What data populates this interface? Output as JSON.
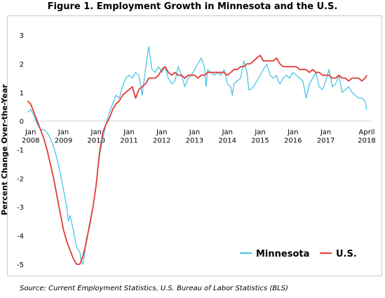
{
  "chart_data": {
    "type": "line",
    "title": "Figure 1. Employment Growth in Minnesota and the U.S.",
    "ylabel": "Percent Change Over-the-Year",
    "xlabel": "",
    "ylim": [
      -5.2,
      3.2
    ],
    "y_ticks": [
      3,
      2,
      1,
      0,
      -1,
      -2,
      -3,
      -4,
      -5
    ],
    "x_ticks": [
      {
        "x": 2008,
        "line1": "Jan",
        "line2": "2008"
      },
      {
        "x": 2009,
        "line1": "Jan",
        "line2": "2009"
      },
      {
        "x": 2010,
        "line1": "Jan",
        "line2": "2010"
      },
      {
        "x": 2011,
        "line1": "Jan",
        "line2": "2011"
      },
      {
        "x": 2012,
        "line1": "Jan",
        "line2": "2012"
      },
      {
        "x": 2013,
        "line1": "Jan",
        "line2": "2013"
      },
      {
        "x": 2014,
        "line1": "Jan",
        "line2": "2014"
      },
      {
        "x": 2015,
        "line1": "Jan",
        "line2": "2015"
      },
      {
        "x": 2016,
        "line1": "Jan",
        "line2": "2016"
      },
      {
        "x": 2017,
        "line1": "Jan",
        "line2": "2017"
      },
      {
        "x": 2018.25,
        "line1": "April",
        "line2": "2018"
      }
    ],
    "xlim": [
      2007.92,
      2018.4
    ],
    "legend_position": "bottom-right",
    "grid": false,
    "series": [
      {
        "name": "Minnesota",
        "color": "#3ec1e6",
        "points": [
          [
            2007.9,
            0.3
          ],
          [
            2008.0,
            0.4
          ],
          [
            2008.1,
            0.2
          ],
          [
            2008.2,
            -0.1
          ],
          [
            2008.3,
            -0.3
          ],
          [
            2008.4,
            -0.3
          ],
          [
            2008.5,
            -0.4
          ],
          [
            2008.6,
            -0.6
          ],
          [
            2008.7,
            -0.9
          ],
          [
            2008.8,
            -1.3
          ],
          [
            2008.9,
            -1.8
          ],
          [
            2009.0,
            -2.4
          ],
          [
            2009.1,
            -3.0
          ],
          [
            2009.15,
            -3.5
          ],
          [
            2009.2,
            -3.3
          ],
          [
            2009.3,
            -3.8
          ],
          [
            2009.4,
            -4.4
          ],
          [
            2009.5,
            -4.6
          ],
          [
            2009.55,
            -4.9
          ],
          [
            2009.6,
            -5.0
          ],
          [
            2009.65,
            -4.6
          ],
          [
            2009.7,
            -4.1
          ],
          [
            2009.8,
            -3.7
          ],
          [
            2009.9,
            -3.0
          ],
          [
            2010.0,
            -2.2
          ],
          [
            2010.1,
            -1.2
          ],
          [
            2010.2,
            -0.6
          ],
          [
            2010.3,
            -0.1
          ],
          [
            2010.4,
            0.3
          ],
          [
            2010.5,
            0.6
          ],
          [
            2010.6,
            0.9
          ],
          [
            2010.7,
            0.8
          ],
          [
            2010.8,
            1.2
          ],
          [
            2010.9,
            1.5
          ],
          [
            2011.0,
            1.6
          ],
          [
            2011.1,
            1.5
          ],
          [
            2011.2,
            1.7
          ],
          [
            2011.3,
            1.6
          ],
          [
            2011.35,
            1.3
          ],
          [
            2011.4,
            0.9
          ],
          [
            2011.5,
            1.8
          ],
          [
            2011.6,
            2.6
          ],
          [
            2011.7,
            1.8
          ],
          [
            2011.8,
            1.7
          ],
          [
            2011.9,
            1.9
          ],
          [
            2012.0,
            1.7
          ],
          [
            2012.1,
            1.9
          ],
          [
            2012.2,
            1.5
          ],
          [
            2012.3,
            1.3
          ],
          [
            2012.4,
            1.4
          ],
          [
            2012.5,
            1.9
          ],
          [
            2012.6,
            1.6
          ],
          [
            2012.7,
            1.2
          ],
          [
            2012.8,
            1.5
          ],
          [
            2012.9,
            1.6
          ],
          [
            2013.0,
            1.8
          ],
          [
            2013.1,
            2.0
          ],
          [
            2013.2,
            2.2
          ],
          [
            2013.3,
            1.9
          ],
          [
            2013.35,
            1.2
          ],
          [
            2013.4,
            1.8
          ],
          [
            2013.5,
            1.7
          ],
          [
            2013.6,
            1.6
          ],
          [
            2013.7,
            1.7
          ],
          [
            2013.8,
            1.6
          ],
          [
            2013.9,
            1.8
          ],
          [
            2014.0,
            1.3
          ],
          [
            2014.1,
            1.2
          ],
          [
            2014.15,
            0.9
          ],
          [
            2014.2,
            1.3
          ],
          [
            2014.3,
            1.4
          ],
          [
            2014.4,
            1.5
          ],
          [
            2014.5,
            2.1
          ],
          [
            2014.6,
            1.7
          ],
          [
            2014.65,
            1.1
          ],
          [
            2014.7,
            1.1
          ],
          [
            2014.8,
            1.2
          ],
          [
            2014.9,
            1.4
          ],
          [
            2015.0,
            1.6
          ],
          [
            2015.1,
            1.8
          ],
          [
            2015.2,
            2.0
          ],
          [
            2015.3,
            1.6
          ],
          [
            2015.4,
            1.5
          ],
          [
            2015.5,
            1.6
          ],
          [
            2015.55,
            1.4
          ],
          [
            2015.6,
            1.3
          ],
          [
            2015.7,
            1.5
          ],
          [
            2015.8,
            1.6
          ],
          [
            2015.9,
            1.5
          ],
          [
            2016.0,
            1.7
          ],
          [
            2016.1,
            1.6
          ],
          [
            2016.2,
            1.5
          ],
          [
            2016.3,
            1.4
          ],
          [
            2016.35,
            1.1
          ],
          [
            2016.4,
            0.8
          ],
          [
            2016.5,
            1.3
          ],
          [
            2016.6,
            1.5
          ],
          [
            2016.7,
            1.7
          ],
          [
            2016.8,
            1.2
          ],
          [
            2016.9,
            1.1
          ],
          [
            2017.0,
            1.4
          ],
          [
            2017.1,
            1.8
          ],
          [
            2017.2,
            1.2
          ],
          [
            2017.3,
            1.3
          ],
          [
            2017.4,
            1.6
          ],
          [
            2017.5,
            1.0
          ],
          [
            2017.6,
            1.1
          ],
          [
            2017.7,
            1.2
          ],
          [
            2017.8,
            1.0
          ],
          [
            2017.9,
            0.9
          ],
          [
            2018.0,
            0.8
          ],
          [
            2018.1,
            0.8
          ],
          [
            2018.2,
            0.7
          ],
          [
            2018.25,
            0.4
          ]
        ]
      },
      {
        "name": "U.S.",
        "color": "#e23b35",
        "points": [
          [
            2007.9,
            0.7
          ],
          [
            2008.0,
            0.6
          ],
          [
            2008.1,
            0.3
          ],
          [
            2008.2,
            0.0
          ],
          [
            2008.3,
            -0.3
          ],
          [
            2008.4,
            -0.6
          ],
          [
            2008.5,
            -1.0
          ],
          [
            2008.6,
            -1.5
          ],
          [
            2008.7,
            -2.0
          ],
          [
            2008.8,
            -2.6
          ],
          [
            2008.9,
            -3.2
          ],
          [
            2009.0,
            -3.8
          ],
          [
            2009.1,
            -4.2
          ],
          [
            2009.2,
            -4.5
          ],
          [
            2009.3,
            -4.8
          ],
          [
            2009.4,
            -5.0
          ],
          [
            2009.5,
            -5.0
          ],
          [
            2009.6,
            -4.7
          ],
          [
            2009.7,
            -4.2
          ],
          [
            2009.8,
            -3.6
          ],
          [
            2009.9,
            -3.0
          ],
          [
            2010.0,
            -2.2
          ],
          [
            2010.1,
            -1.1
          ],
          [
            2010.2,
            -0.4
          ],
          [
            2010.3,
            -0.1
          ],
          [
            2010.4,
            0.1
          ],
          [
            2010.5,
            0.4
          ],
          [
            2010.6,
            0.6
          ],
          [
            2010.7,
            0.7
          ],
          [
            2010.8,
            0.9
          ],
          [
            2010.9,
            1.0
          ],
          [
            2011.0,
            1.1
          ],
          [
            2011.1,
            1.2
          ],
          [
            2011.2,
            0.8
          ],
          [
            2011.3,
            1.1
          ],
          [
            2011.4,
            1.2
          ],
          [
            2011.5,
            1.3
          ],
          [
            2011.6,
            1.5
          ],
          [
            2011.7,
            1.5
          ],
          [
            2011.8,
            1.5
          ],
          [
            2011.9,
            1.6
          ],
          [
            2012.0,
            1.8
          ],
          [
            2012.1,
            1.9
          ],
          [
            2012.2,
            1.7
          ],
          [
            2012.3,
            1.6
          ],
          [
            2012.4,
            1.7
          ],
          [
            2012.5,
            1.6
          ],
          [
            2012.6,
            1.6
          ],
          [
            2012.7,
            1.5
          ],
          [
            2012.8,
            1.6
          ],
          [
            2012.9,
            1.6
          ],
          [
            2013.0,
            1.6
          ],
          [
            2013.1,
            1.5
          ],
          [
            2013.2,
            1.6
          ],
          [
            2013.3,
            1.6
          ],
          [
            2013.4,
            1.7
          ],
          [
            2013.5,
            1.7
          ],
          [
            2013.6,
            1.7
          ],
          [
            2013.7,
            1.7
          ],
          [
            2013.8,
            1.7
          ],
          [
            2013.9,
            1.7
          ],
          [
            2014.0,
            1.6
          ],
          [
            2014.1,
            1.7
          ],
          [
            2014.2,
            1.8
          ],
          [
            2014.3,
            1.8
          ],
          [
            2014.4,
            1.9
          ],
          [
            2014.5,
            1.9
          ],
          [
            2014.6,
            2.0
          ],
          [
            2014.7,
            2.0
          ],
          [
            2014.8,
            2.1
          ],
          [
            2014.9,
            2.2
          ],
          [
            2015.0,
            2.3
          ],
          [
            2015.1,
            2.1
          ],
          [
            2015.2,
            2.1
          ],
          [
            2015.3,
            2.1
          ],
          [
            2015.4,
            2.1
          ],
          [
            2015.5,
            2.2
          ],
          [
            2015.6,
            2.0
          ],
          [
            2015.7,
            1.9
          ],
          [
            2015.8,
            1.9
          ],
          [
            2015.9,
            1.9
          ],
          [
            2016.0,
            1.9
          ],
          [
            2016.1,
            1.9
          ],
          [
            2016.2,
            1.8
          ],
          [
            2016.3,
            1.8
          ],
          [
            2016.4,
            1.8
          ],
          [
            2016.5,
            1.7
          ],
          [
            2016.6,
            1.8
          ],
          [
            2016.7,
            1.7
          ],
          [
            2016.8,
            1.7
          ],
          [
            2016.9,
            1.6
          ],
          [
            2017.0,
            1.6
          ],
          [
            2017.1,
            1.6
          ],
          [
            2017.2,
            1.5
          ],
          [
            2017.3,
            1.5
          ],
          [
            2017.4,
            1.6
          ],
          [
            2017.5,
            1.5
          ],
          [
            2017.6,
            1.5
          ],
          [
            2017.7,
            1.4
          ],
          [
            2017.8,
            1.5
          ],
          [
            2017.9,
            1.5
          ],
          [
            2018.0,
            1.5
          ],
          [
            2018.1,
            1.4
          ],
          [
            2018.2,
            1.5
          ],
          [
            2018.25,
            1.6
          ]
        ]
      }
    ]
  },
  "source": "Source: Current Employment Statistics, U.S. Bureau of Labor Statistics (BLS)"
}
